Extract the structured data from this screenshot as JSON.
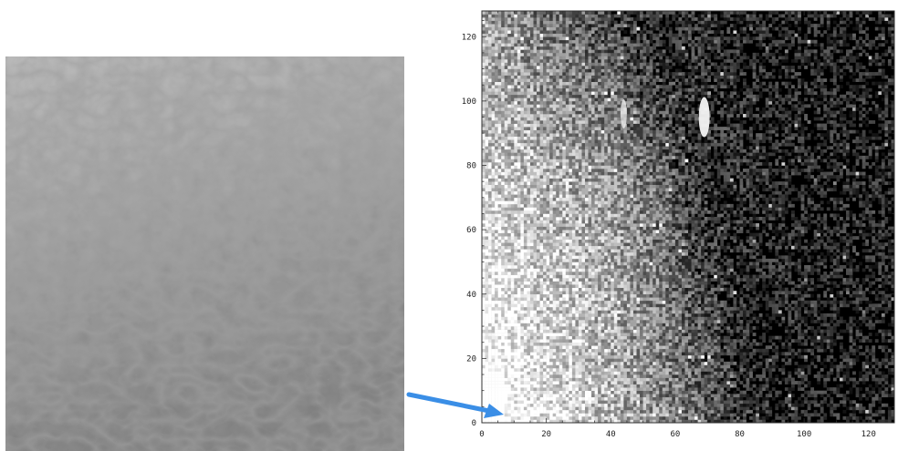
{
  "photo": {
    "subject": "leather-texture-icon"
  },
  "chart_data": {
    "type": "heatmap",
    "colormap": "grayscale",
    "background": "#000000",
    "xlim": [
      0,
      128
    ],
    "ylim": [
      0,
      128
    ],
    "xticks": [
      "0",
      "20",
      "40",
      "60",
      "80",
      "100",
      "120"
    ],
    "yticks": [
      "0",
      "20",
      "40",
      "60",
      "80",
      "100",
      "120"
    ],
    "grid": false,
    "hotspots": [
      {
        "x": 69,
        "y": 95
      },
      {
        "x": 44,
        "y": 96
      }
    ],
    "pointer_target": {
      "x": 3,
      "y": 5
    }
  },
  "colors": {
    "arrow": "#3a8ee6",
    "axis": "#333333"
  }
}
